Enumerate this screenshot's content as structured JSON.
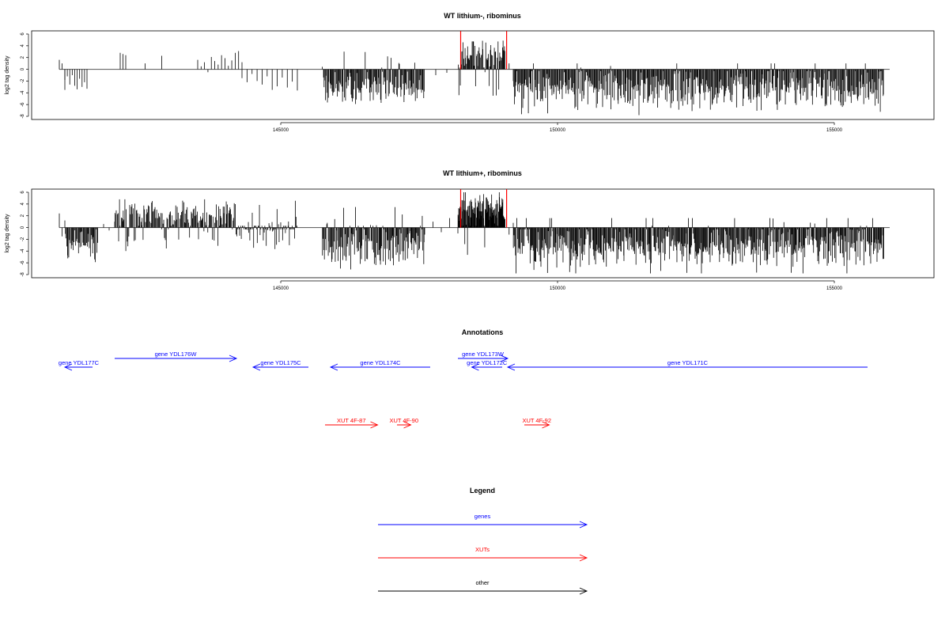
{
  "chart_data": [
    {
      "type": "bar",
      "title": "WT lithium-, ribominus",
      "ylabel": "log2 tag density",
      "ylim": [
        -8,
        6
      ],
      "yticks": [
        "6",
        "4",
        "2",
        "0",
        "-2",
        "-4",
        "-6",
        "-8"
      ],
      "xlim": [
        140500,
        156800
      ],
      "xticks": [
        "145000",
        "150000",
        "155000"
      ],
      "zero_line_range": [
        141000,
        156000
      ],
      "highlight_color": "#ff0000",
      "bar_color": "#000000",
      "highlight_bars": [
        {
          "x": 148250,
          "value": 6.5
        },
        {
          "x": 149080,
          "value": 6.5
        }
      ],
      "segments": [
        {
          "start": 141000,
          "end": 141100,
          "values": [
            1.6,
            1.0,
            -1.8
          ]
        },
        {
          "start": 141100,
          "end": 141500,
          "values": [
            -3.5,
            -1.2,
            -2.6,
            -1.0,
            -2.8,
            -3.4,
            -1.6,
            -3.0,
            -2.2,
            -3.3
          ]
        },
        {
          "start": 142100,
          "end": 142200,
          "values": [
            2.8,
            2.6,
            2.4
          ]
        },
        {
          "start": 142500,
          "end": 142600,
          "values": [
            1.0
          ]
        },
        {
          "start": 142800,
          "end": 142900,
          "values": [
            2.3
          ]
        },
        {
          "start": 143500,
          "end": 144300,
          "values": [
            1.6,
            0.5,
            1.2,
            -0.5,
            2.1,
            1.4,
            0.8,
            2.4,
            1.9,
            0.6,
            1.5,
            2.8,
            3.1,
            1.2
          ]
        },
        {
          "start": 144300,
          "end": 145300,
          "values": [
            -1.5,
            -2.2,
            -0.8,
            -2.0,
            -2.6,
            -1.2,
            -3.5,
            -2.9,
            -1.4,
            -3.1,
            -2.1,
            -3.6
          ]
        },
        {
          "start": 145750,
          "end": 147600,
          "density": 140,
          "mean": -3.2,
          "spread": 1.6,
          "posFrac": 0.05,
          "posMax": 3.0
        },
        {
          "start": 147800,
          "end": 148000,
          "values": [
            -1.0,
            -0.6
          ]
        },
        {
          "start": 148200,
          "end": 149050,
          "density": 70,
          "mean": 2.6,
          "spread": 1.5,
          "posFrac": 0.9,
          "posMax": 5.0
        },
        {
          "start": 149050,
          "end": 149200,
          "values": [
            3.1,
            1.0,
            -2.0
          ]
        },
        {
          "start": 149200,
          "end": 155900,
          "density": 520,
          "mean": -3.3,
          "spread": 1.8,
          "posFrac": 0.01,
          "posMax": 1.0
        }
      ]
    },
    {
      "type": "bar",
      "title": "WT lithium+, ribominus",
      "ylabel": "log2 tag density",
      "ylim": [
        -8,
        6
      ],
      "yticks": [
        "6",
        "4",
        "2",
        "0",
        "-2",
        "-4",
        "-6",
        "-8"
      ],
      "xlim": [
        140500,
        156800
      ],
      "xticks": [
        "145000",
        "150000",
        "155000"
      ],
      "zero_line_range": [
        141000,
        156000
      ],
      "highlight_color": "#ff0000",
      "bar_color": "#000000",
      "highlight_bars": [
        {
          "x": 148250,
          "value": 6.5
        },
        {
          "x": 149080,
          "value": 6.5
        }
      ],
      "segments": [
        {
          "start": 141000,
          "end": 141100,
          "values": [
            2.4,
            -1.5,
            1.2
          ]
        },
        {
          "start": 141100,
          "end": 141700,
          "density": 45,
          "mean": -3.0,
          "spread": 1.2,
          "posFrac": 0.0,
          "posMax": 1.0
        },
        {
          "start": 141800,
          "end": 142000,
          "values": [
            0.6,
            -0.5,
            1.0
          ]
        },
        {
          "start": 142000,
          "end": 144200,
          "density": 160,
          "mean": 2.2,
          "spread": 1.3,
          "posFrac": 0.85,
          "posMax": 4.8
        },
        {
          "start": 144200,
          "end": 145300,
          "density": 80,
          "mean": 0.0,
          "spread": 2.2,
          "posFrac": 0.45,
          "posMax": 4.8
        },
        {
          "start": 145750,
          "end": 147600,
          "density": 150,
          "mean": -3.4,
          "spread": 1.8,
          "posFrac": 0.15,
          "posMax": 3.5
        },
        {
          "start": 147600,
          "end": 148200,
          "values": [
            -1.2,
            1.0,
            -0.8,
            1.6,
            -1.0
          ]
        },
        {
          "start": 148200,
          "end": 149050,
          "density": 120,
          "mean": 3.2,
          "spread": 1.5,
          "posFrac": 0.95,
          "posMax": 6.0
        },
        {
          "start": 149050,
          "end": 149200,
          "values": [
            1.4,
            -1.2,
            0.8
          ]
        },
        {
          "start": 149200,
          "end": 155900,
          "density": 560,
          "mean": -3.4,
          "spread": 1.8,
          "posFrac": 0.03,
          "posMax": 1.6
        }
      ]
    }
  ],
  "annotations": {
    "title": "Annotations",
    "features": [
      {
        "label": "gene YDL177C",
        "start": 141100,
        "end": 141600,
        "strand": "-",
        "kind": "gene",
        "row": 1
      },
      {
        "label": "gene YDL176W",
        "start": 142000,
        "end": 144200,
        "strand": "+",
        "kind": "gene",
        "row": 0
      },
      {
        "label": "gene YDL175C",
        "start": 144500,
        "end": 145500,
        "strand": "-",
        "kind": "gene",
        "row": 1
      },
      {
        "label": "gene YDL174C",
        "start": 145900,
        "end": 147700,
        "strand": "-",
        "kind": "gene",
        "row": 1
      },
      {
        "label": "gene YDL173W",
        "start": 148200,
        "end": 149100,
        "strand": "+",
        "kind": "gene",
        "row": 0
      },
      {
        "label": "gene YDL172C",
        "start": 148450,
        "end": 149000,
        "strand": "-",
        "kind": "gene",
        "row": 1
      },
      {
        "label": "gene YDL171C",
        "start": 149100,
        "end": 155600,
        "strand": "-",
        "kind": "gene",
        "row": 1
      },
      {
        "label": "XUT 4F-87",
        "start": 145800,
        "end": 146750,
        "strand": "+",
        "kind": "xut",
        "row": 2
      },
      {
        "label": "XUT 4F-90",
        "start": 147100,
        "end": 147350,
        "strand": "+",
        "kind": "xut",
        "row": 2
      },
      {
        "label": "XUT 4F-92",
        "start": 149400,
        "end": 149850,
        "strand": "+",
        "kind": "xut",
        "row": 2
      }
    ]
  },
  "legend": {
    "title": "Legend",
    "items": [
      {
        "label": "genes",
        "color": "#0000ff"
      },
      {
        "label": "XUTs",
        "color": "#ff0000"
      },
      {
        "label": "other",
        "color": "#000000"
      }
    ]
  }
}
